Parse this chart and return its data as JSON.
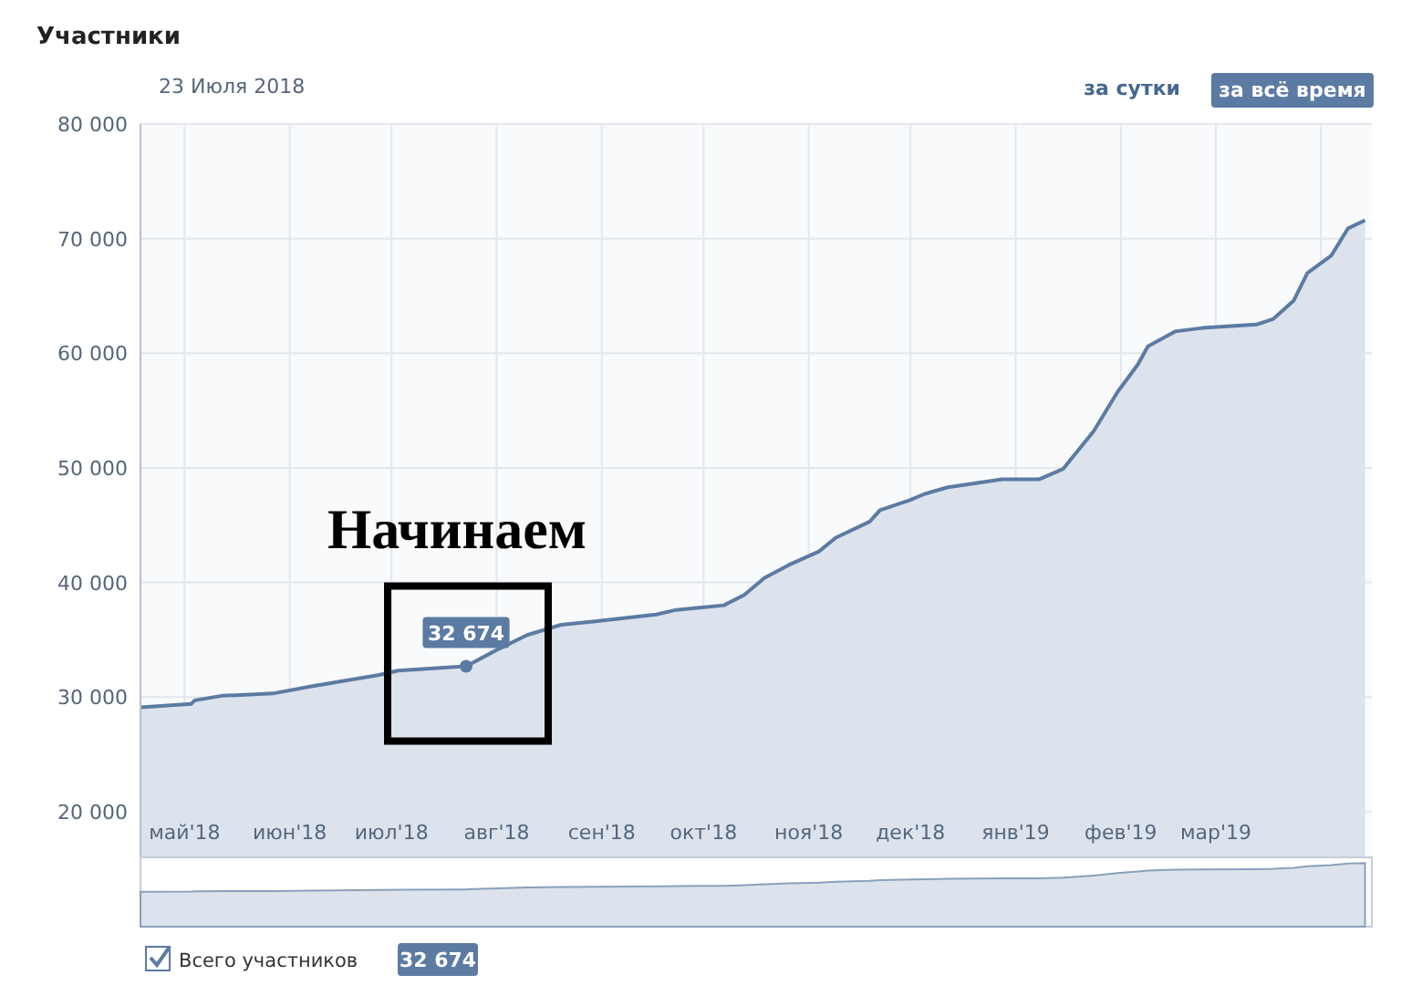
{
  "chart_data": {
    "type": "area",
    "title": "Участники",
    "subtitle": "23 Июля 2018",
    "x": [
      "2018-04-18",
      "2018-05-03",
      "2018-05-04",
      "2018-05-12",
      "2018-05-27",
      "2018-06-07",
      "2018-06-27",
      "2018-07-03",
      "2018-07-23",
      "2018-08-01",
      "2018-08-10",
      "2018-08-20",
      "2018-08-30",
      "2018-09-17",
      "2018-09-23",
      "2018-10-07",
      "2018-10-13",
      "2018-10-19",
      "2018-10-26",
      "2018-11-04",
      "2018-11-09",
      "2018-11-19",
      "2018-11-22",
      "2018-12-01",
      "2018-12-05",
      "2018-12-12",
      "2018-12-28",
      "2019-01-08",
      "2019-01-15",
      "2019-01-24",
      "2019-01-31",
      "2019-02-06",
      "2019-02-09",
      "2019-02-17",
      "2019-02-25",
      "2019-03-13",
      "2019-03-18",
      "2019-03-24",
      "2019-03-28",
      "2019-04-04",
      "2019-04-09",
      "2019-04-14"
    ],
    "series": [
      {
        "name": "Всего участников",
        "color": "#5b7ba3",
        "values": [
          29100,
          29400,
          29700,
          30100,
          30300,
          30900,
          31900,
          32300,
          32674,
          34100,
          35400,
          36300,
          36600,
          37200,
          37600,
          38000,
          38900,
          40400,
          41500,
          42700,
          43900,
          45300,
          46300,
          47200,
          47700,
          48300,
          49000,
          49000,
          49900,
          53200,
          56600,
          59000,
          60600,
          61900,
          62200,
          62500,
          63000,
          64600,
          67000,
          68500,
          70900,
          71600
        ]
      }
    ],
    "xlim": [
      "2018-04-18",
      "2019-04-16"
    ],
    "xticks": [
      {
        "value": "2018-05-01",
        "label": "май'18"
      },
      {
        "value": "2018-06-01",
        "label": "июн'18"
      },
      {
        "value": "2018-07-01",
        "label": "июл'18"
      },
      {
        "value": "2018-08-01",
        "label": "авг'18"
      },
      {
        "value": "2018-09-01",
        "label": "сен'18"
      },
      {
        "value": "2018-10-01",
        "label": "окт'18"
      },
      {
        "value": "2018-11-01",
        "label": "ноя'18"
      },
      {
        "value": "2018-12-01",
        "label": "дек'18"
      },
      {
        "value": "2019-01-01",
        "label": "янв'19"
      },
      {
        "value": "2019-02-01",
        "label": "фев'19"
      },
      {
        "value": "2019-03-01",
        "label": "мар'19"
      },
      {
        "value": "2019-04-01",
        "label": null
      }
    ],
    "ylim": [
      16000,
      80000
    ],
    "yticks": [
      {
        "value": 20000,
        "label": "20 000"
      },
      {
        "value": 30000,
        "label": "30 000"
      },
      {
        "value": 40000,
        "label": "40 000"
      },
      {
        "value": 50000,
        "label": "50 000"
      },
      {
        "value": 60000,
        "label": "60 000"
      },
      {
        "value": 70000,
        "label": "70 000"
      },
      {
        "value": 80000,
        "label": "80 000"
      }
    ],
    "grid": true,
    "legend": "bottom left",
    "annotations": [
      "за сутки",
      "за всё время",
      {
        "text": "32 674",
        "x": "2018-07-23",
        "y": 32674
      },
      {
        "text": "Начинаем",
        "x": "2018-07-23",
        "y": 32674
      },
      "32 674"
    ]
  }
}
